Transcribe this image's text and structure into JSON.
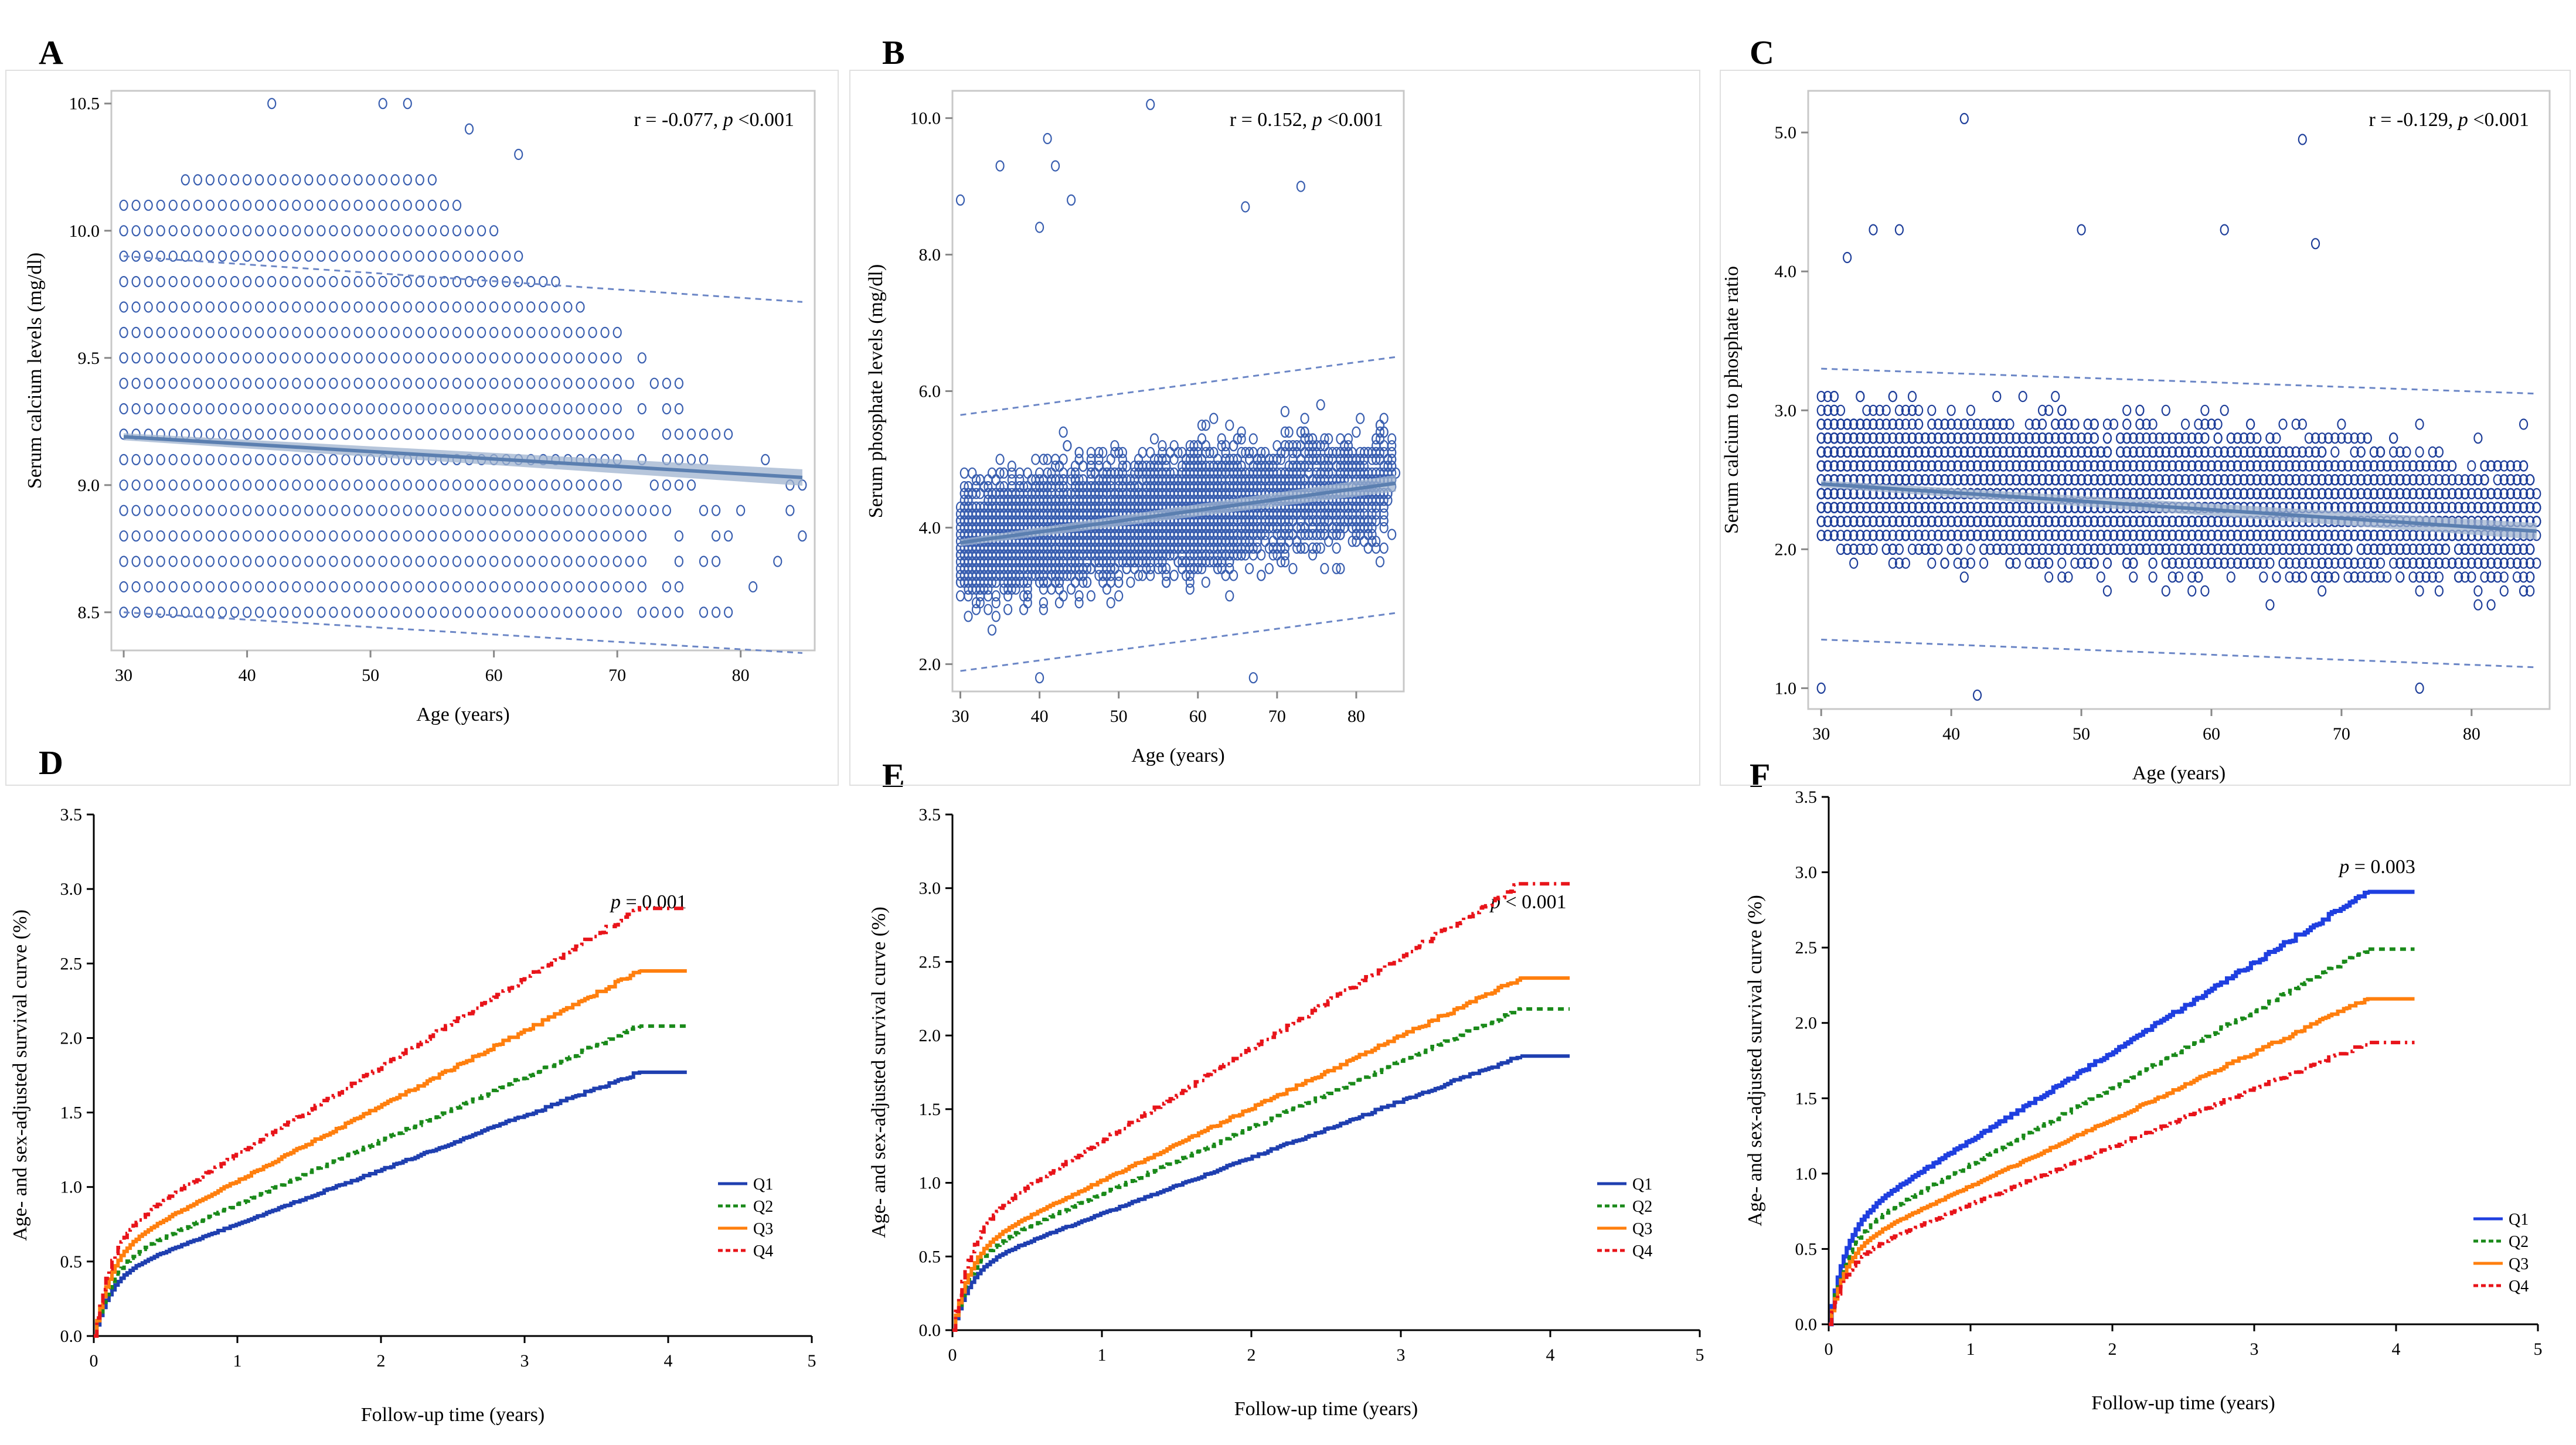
{
  "figure": {
    "panel_labels": [
      "A",
      "B",
      "C",
      "D",
      "E",
      "F"
    ]
  },
  "chart_data": [
    {
      "panel": "A",
      "type": "scatter",
      "stat": "r = -0.077, p <0.001",
      "stat_parts": [
        "r = -0.077, ",
        "p",
        " <0.001"
      ],
      "xlabel": "Age (years)",
      "ylabel": "Serum calcium levels (mg/dl)",
      "xlim": [
        29,
        86
      ],
      "ylim": [
        8.35,
        10.55
      ],
      "xticks": [
        30,
        40,
        50,
        60,
        70,
        80
      ],
      "yticks": [
        8.5,
        9.0,
        9.5,
        10.0,
        10.5
      ],
      "ytick_labels": [
        "8.5",
        "9.0",
        "9.5",
        "10.0",
        "10.5"
      ],
      "point_color": "#3a5fb0",
      "fit_color": "#5b7fb0",
      "fit": {
        "x": [
          30,
          85
        ],
        "y": [
          9.19,
          9.03
        ]
      },
      "pred_lower": {
        "x": [
          30,
          85
        ],
        "y": [
          8.5,
          8.34
        ]
      },
      "pred_upper": {
        "x": [
          30,
          85
        ],
        "y": [
          9.9,
          9.72
        ]
      },
      "gen": {
        "kind": "grid",
        "step": 0.1,
        "outliers": [
          [
            42,
            10.5
          ],
          [
            51,
            10.5
          ],
          [
            53,
            10.5
          ],
          [
            58,
            10.4
          ],
          [
            62,
            10.3
          ],
          [
            85,
            8.8
          ]
        ]
      }
    },
    {
      "panel": "B",
      "type": "scatter",
      "stat": "r = 0.152, p <0.001",
      "stat_parts": [
        "r = 0.152, ",
        "p",
        " <0.001"
      ],
      "xlabel": "Age (years)",
      "ylabel": "Serum phosphate levels (mg/dl)",
      "xlim": [
        29,
        86
      ],
      "ylim": [
        1.6,
        10.4
      ],
      "xticks": [
        30,
        40,
        50,
        60,
        70,
        80
      ],
      "yticks": [
        2.0,
        4.0,
        6.0,
        8.0,
        10.0
      ],
      "ytick_labels": [
        "2.0",
        "4.0",
        "6.0",
        "8.0",
        "10.0"
      ],
      "point_color": "#3a5fb0",
      "fit_color": "#5b7fb0",
      "fit": {
        "x": [
          30,
          85
        ],
        "y": [
          3.78,
          4.65
        ]
      },
      "pred_lower": {
        "x": [
          30,
          85
        ],
        "y": [
          1.9,
          2.75
        ]
      },
      "pred_upper": {
        "x": [
          30,
          85
        ],
        "y": [
          5.65,
          6.5
        ]
      },
      "gen": {
        "kind": "cloud",
        "center": 4.1,
        "slope": 0.016,
        "spread": 1.15,
        "min": 2.2,
        "outliers": [
          [
            54,
            10.2
          ],
          [
            41,
            9.7
          ],
          [
            35,
            9.3
          ],
          [
            42,
            9.3
          ],
          [
            30,
            8.8
          ],
          [
            44,
            8.8
          ],
          [
            73,
            9.0
          ],
          [
            66,
            8.7
          ],
          [
            40,
            8.4
          ],
          [
            40,
            1.8
          ],
          [
            67,
            1.8
          ]
        ]
      }
    },
    {
      "panel": "C",
      "type": "scatter",
      "stat": "r = -0.129, p <0.001",
      "stat_parts": [
        "r = -0.129, ",
        "p",
        " <0.001"
      ],
      "xlabel": "Age (years)",
      "ylabel": "Serum calcium to phosphate ratio",
      "xlim": [
        29,
        86
      ],
      "ylim": [
        0.85,
        5.3
      ],
      "xticks": [
        30,
        40,
        50,
        60,
        70,
        80
      ],
      "yticks": [
        1.0,
        2.0,
        3.0,
        4.0,
        5.0
      ],
      "ytick_labels": [
        "1.0",
        "2.0",
        "3.0",
        "4.0",
        "5.0"
      ],
      "point_color": "#1f3f9a",
      "fit_color": "#5b7fb0",
      "fit": {
        "x": [
          30,
          85
        ],
        "y": [
          2.47,
          2.13
        ]
      },
      "pred_lower": {
        "x": [
          30,
          85
        ],
        "y": [
          1.35,
          1.15
        ]
      },
      "pred_upper": {
        "x": [
          30,
          85
        ],
        "y": [
          3.3,
          3.12
        ]
      },
      "gen": {
        "kind": "dense",
        "center": 2.4,
        "slope": -0.006,
        "spread": 0.6,
        "min": 1.0,
        "outliers": [
          [
            41,
            5.1
          ],
          [
            67,
            4.95
          ],
          [
            34,
            4.3
          ],
          [
            50,
            4.3
          ],
          [
            36,
            4.3
          ],
          [
            61,
            4.3
          ],
          [
            32,
            4.1
          ],
          [
            68,
            4.2
          ],
          [
            30,
            1.0
          ],
          [
            42,
            0.95
          ],
          [
            76,
            1.0
          ]
        ]
      }
    },
    {
      "panel": "D",
      "type": "line",
      "stat": "p = 0.001",
      "stat_parts": [
        "p",
        " = 0.001"
      ],
      "xlabel": "Follow-up time (years)",
      "ylabel": "Age- and sex-adjusted survival curve (%)",
      "xlim": [
        0,
        5
      ],
      "ylim": [
        0,
        3.5
      ],
      "xticks": [
        0,
        1,
        2,
        3,
        4,
        5
      ],
      "yticks": [
        0,
        0.5,
        1.0,
        1.5,
        2.0,
        2.5,
        3.0,
        3.5
      ],
      "ytick_labels": [
        "0.0",
        "0.5",
        "1.0",
        "1.5",
        "2.0",
        "2.5",
        "3.0",
        "3.5"
      ],
      "series": [
        {
          "name": "Q1",
          "color": "#1f3fb0",
          "dash": "",
          "width": 6,
          "end_t": 3.8,
          "end_y": 1.77,
          "tail": [
            3.8,
            4.13
          ]
        },
        {
          "name": "Q2",
          "color": "#1a8a1a",
          "dash": "10,8",
          "width": 6,
          "end_t": 3.8,
          "end_y": 2.08,
          "tail": [
            3.8,
            4.13
          ]
        },
        {
          "name": "Q3",
          "color": "#ff7f0e",
          "dash": "",
          "width": 6,
          "end_t": 3.8,
          "end_y": 2.45,
          "tail": [
            3.8,
            4.13
          ]
        },
        {
          "name": "Q4",
          "color": "#e8141a",
          "dash": "16,8,4,8",
          "width": 6,
          "end_t": 3.8,
          "end_y": 2.87,
          "tail": [
            3.8,
            4.13
          ]
        }
      ]
    },
    {
      "panel": "E",
      "type": "line",
      "stat": "p < 0.001",
      "stat_parts": [
        "p",
        " < 0.001"
      ],
      "xlabel": "Follow-up  time (years)",
      "ylabel": "Age- and sex-adjusted survival curve (%)",
      "xlim": [
        0,
        5
      ],
      "ylim": [
        0,
        3.5
      ],
      "xticks": [
        0,
        1,
        2,
        3,
        4,
        5
      ],
      "yticks": [
        0,
        0.5,
        1.0,
        1.5,
        2.0,
        2.5,
        3.0,
        3.5
      ],
      "ytick_labels": [
        "0.0",
        "0.5",
        "1.0",
        "1.5",
        "2.0",
        "2.5",
        "3.0",
        "3.5"
      ],
      "series": [
        {
          "name": "Q1",
          "color": "#1f3fb0",
          "dash": "",
          "width": 6,
          "end_t": 3.8,
          "end_y": 1.86,
          "tail": [
            3.8,
            4.13
          ]
        },
        {
          "name": "Q2",
          "color": "#1a8a1a",
          "dash": "10,8",
          "width": 6,
          "end_t": 3.8,
          "end_y": 2.18,
          "tail": [
            3.8,
            4.13
          ]
        },
        {
          "name": "Q3",
          "color": "#ff7f0e",
          "dash": "",
          "width": 6,
          "end_t": 3.8,
          "end_y": 2.39,
          "tail": [
            3.8,
            4.13
          ]
        },
        {
          "name": "Q4",
          "color": "#e8141a",
          "dash": "16,8,4,8",
          "width": 6,
          "end_t": 3.8,
          "end_y": 3.03,
          "tail": [
            3.8,
            4.13
          ]
        }
      ]
    },
    {
      "panel": "F",
      "type": "line",
      "stat": "p = 0.003",
      "stat_parts": [
        "p",
        " = 0.003"
      ],
      "xlabel": "Follow-up time (years)",
      "ylabel": "Age- and sex-adjusted survival curve (%)",
      "xlim": [
        0,
        5
      ],
      "ylim": [
        0,
        3.5
      ],
      "xticks": [
        0,
        1,
        2,
        3,
        4,
        5
      ],
      "yticks": [
        0,
        0.5,
        1.0,
        1.5,
        2.0,
        2.5,
        3.0,
        3.5
      ],
      "ytick_labels": [
        "0.0",
        "0.5",
        "1.0",
        "1.5",
        "2.0",
        "2.5",
        "3.0",
        "3.5"
      ],
      "series": [
        {
          "name": "Q1",
          "color": "#1f3fe0",
          "dash": "",
          "width": 7,
          "end_t": 3.8,
          "end_y": 2.87,
          "tail": [
            3.8,
            4.13
          ]
        },
        {
          "name": "Q2",
          "color": "#1a8a1a",
          "dash": "10,8",
          "width": 6,
          "end_t": 3.8,
          "end_y": 2.49,
          "tail": [
            3.8,
            4.13
          ]
        },
        {
          "name": "Q3",
          "color": "#ff7f0e",
          "dash": "",
          "width": 6,
          "end_t": 3.8,
          "end_y": 2.16,
          "tail": [
            3.8,
            4.13
          ]
        },
        {
          "name": "Q4",
          "color": "#e8141a",
          "dash": "16,8,4,8",
          "width": 6,
          "end_t": 3.8,
          "end_y": 1.87,
          "tail": [
            3.8,
            4.13
          ]
        }
      ]
    }
  ]
}
